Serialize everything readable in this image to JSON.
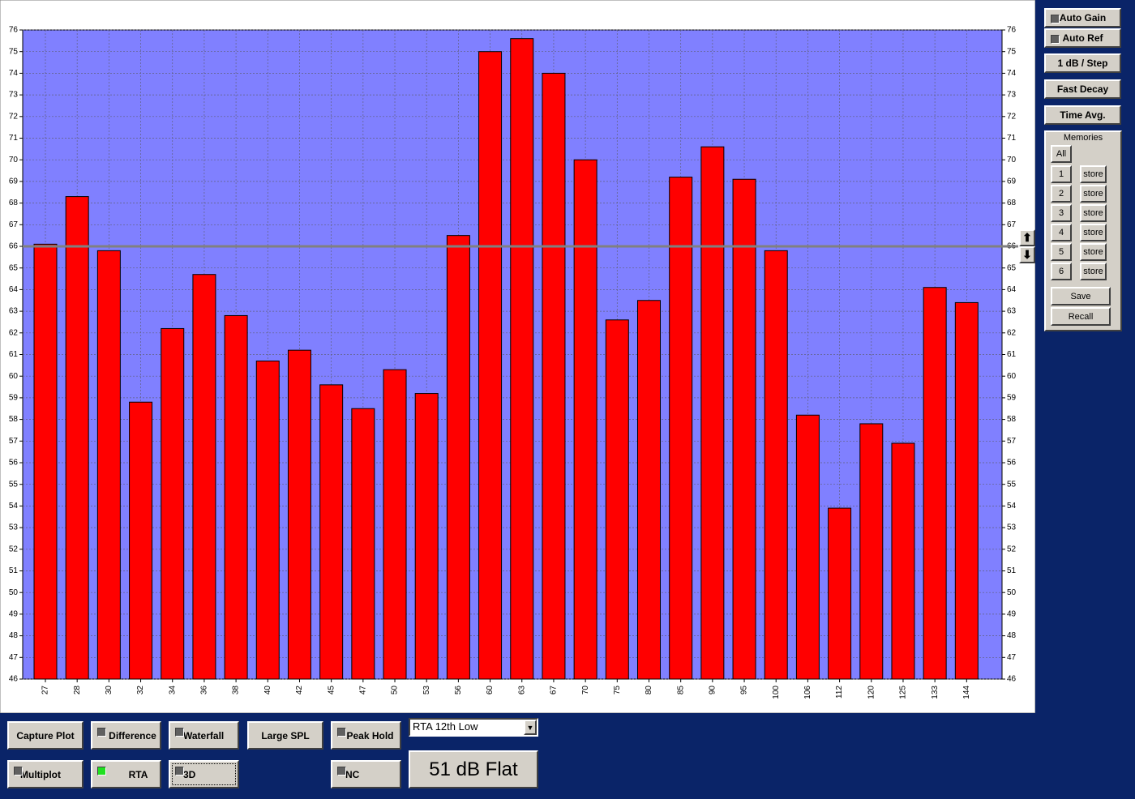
{
  "chart_data": {
    "type": "bar",
    "categories": [
      "27",
      "28",
      "30",
      "32",
      "34",
      "36",
      "38",
      "40",
      "42",
      "45",
      "47",
      "50",
      "53",
      "56",
      "60",
      "63",
      "67",
      "70",
      "75",
      "80",
      "85",
      "90",
      "95",
      "100",
      "106",
      "112",
      "120",
      "125",
      "133",
      "144"
    ],
    "values": [
      66.1,
      68.3,
      65.8,
      58.8,
      62.2,
      64.7,
      62.8,
      60.7,
      61.2,
      59.6,
      58.5,
      60.3,
      59.2,
      66.5,
      75.0,
      75.6,
      74.0,
      70.0,
      62.6,
      63.5,
      69.2,
      70.6,
      69.1,
      65.8,
      58.2,
      53.9,
      57.8,
      56.9,
      64.1,
      63.4
    ],
    "color": "#ff0000",
    "plot_background": "#8080ff",
    "ylim": [
      46,
      76
    ],
    "yticks": [
      46,
      47,
      48,
      49,
      50,
      51,
      52,
      53,
      54,
      55,
      56,
      57,
      58,
      59,
      60,
      61,
      62,
      63,
      64,
      65,
      66,
      67,
      68,
      69,
      70,
      71,
      72,
      73,
      74,
      75,
      76
    ],
    "grid": true,
    "reference_line": 66
  },
  "side_panel": {
    "auto_gain": "Auto Gain",
    "auto_ref": "Auto Ref",
    "step": "1 dB / Step",
    "decay": "Fast Decay",
    "average": "Time Avg.",
    "memories": {
      "title": "Memories",
      "all": "All",
      "slots": [
        "1",
        "2",
        "3",
        "4",
        "5",
        "6"
      ],
      "store": "store",
      "save": "Save",
      "recall": "Recall"
    }
  },
  "bottom_panel": {
    "capture": "Capture Plot",
    "difference": "Difference",
    "waterfall": "Waterfall",
    "large_spl": "Large SPL",
    "peak_hold": "Peak Hold",
    "mode_select": "RTA 12th Low",
    "multiplot": "Multiplot",
    "rta": "RTA",
    "three_d": "3D",
    "nc": "NC",
    "status": "51 dB Flat"
  }
}
